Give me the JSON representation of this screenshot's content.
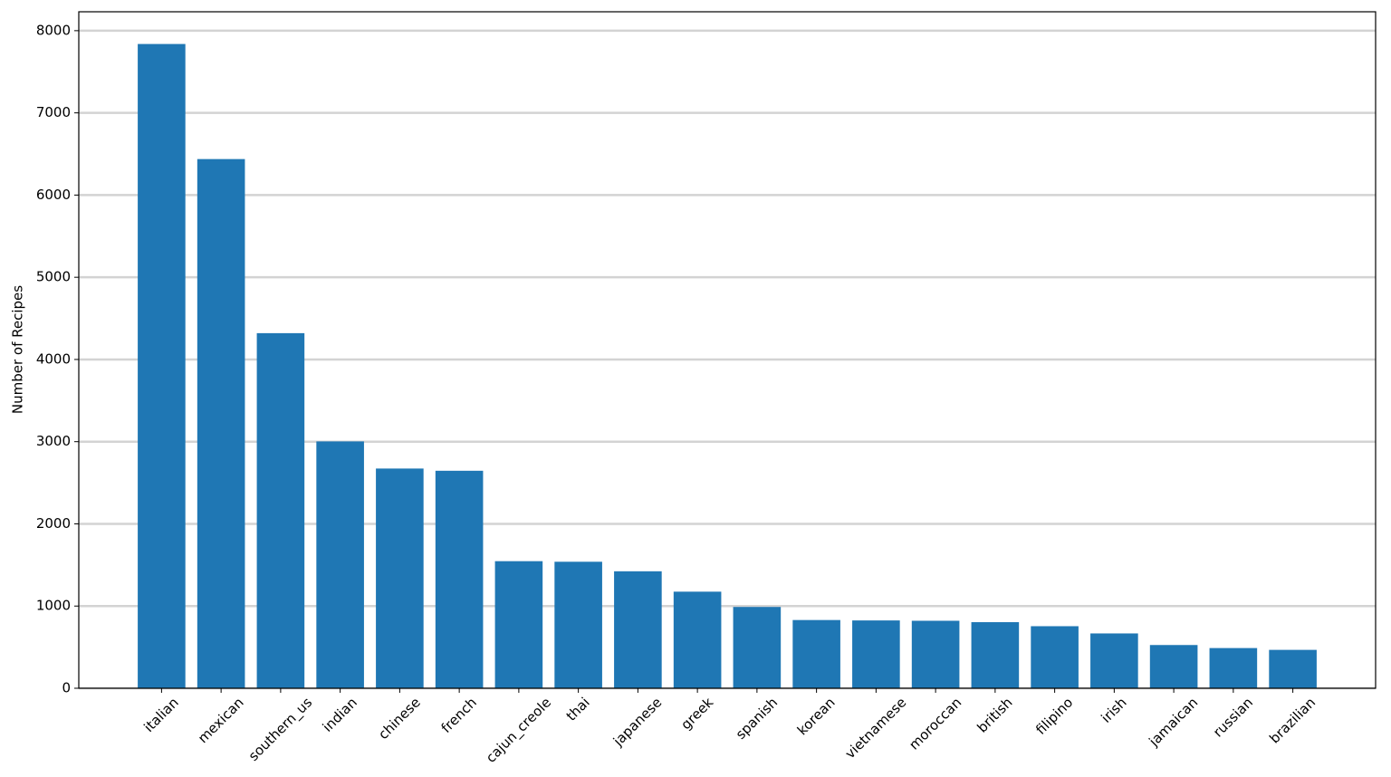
{
  "chart_data": {
    "type": "bar",
    "y_label": "Number of Recipes",
    "categories": [
      "italian",
      "mexican",
      "southern_us",
      "indian",
      "chinese",
      "french",
      "cajun_creole",
      "thai",
      "japanese",
      "greek",
      "spanish",
      "korean",
      "vietnamese",
      "moroccan",
      "british",
      "filipino",
      "irish",
      "jamaican",
      "russian",
      "brazilian"
    ],
    "values": [
      7838,
      6438,
      4320,
      3003,
      2673,
      2646,
      1546,
      1539,
      1423,
      1175,
      989,
      830,
      825,
      821,
      804,
      755,
      667,
      526,
      489,
      467
    ],
    "color": "#1f77b4",
    "ylim": [
      0,
      8230
    ],
    "yticks": [
      0,
      1000,
      2000,
      3000,
      4000,
      5000,
      6000,
      7000,
      8000
    ],
    "grid": true
  }
}
